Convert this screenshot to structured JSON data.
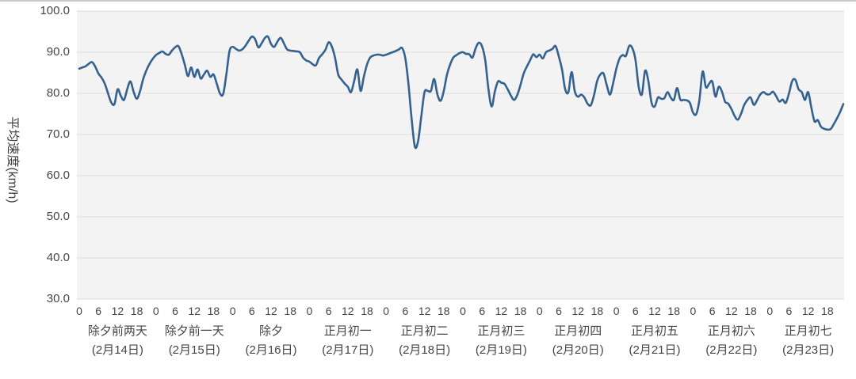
{
  "chart_data": {
    "type": "line",
    "title": "",
    "xlabel": "",
    "ylabel": "平均速度(km/h)",
    "ylim": [
      30.0,
      100.0
    ],
    "grid": "horizontal",
    "legend_position": "none",
    "line_color": "#35618f",
    "plot_background": "#f3f3f3",
    "gridline_color": "#dedede",
    "y_ticks": [
      {
        "value": 100,
        "label": "100.0"
      },
      {
        "value": 90,
        "label": "90.0"
      },
      {
        "value": 80,
        "label": "80.0"
      },
      {
        "value": 70,
        "label": "70.0"
      },
      {
        "value": 60,
        "label": "60.0"
      },
      {
        "value": 50,
        "label": "50.0"
      },
      {
        "value": 40,
        "label": "40.0"
      },
      {
        "value": 30,
        "label": "30.0"
      }
    ],
    "hour_ticks": [
      {
        "hour": 0,
        "label": "0"
      },
      {
        "hour": 6,
        "label": "6"
      },
      {
        "hour": 12,
        "label": "12"
      },
      {
        "hour": 18,
        "label": "18"
      }
    ],
    "series_name": "平均速度",
    "x_unit": "hour",
    "days": [
      {
        "name": "除夕前两天",
        "date": "(2月14日)",
        "hourly_values": [
          86.0,
          86.3,
          86.6,
          87.2,
          87.6,
          86.5,
          84.8,
          83.8,
          82.3,
          80.0,
          77.8,
          77.4,
          81.0,
          79.4,
          78.4,
          81.0,
          82.9,
          80.4,
          78.7,
          80.5,
          83.5,
          85.6,
          87.2,
          88.4
        ]
      },
      {
        "name": "除夕前一天",
        "date": "(2月15日)",
        "hourly_values": [
          89.3,
          89.8,
          90.2,
          89.6,
          89.4,
          90.4,
          91.2,
          91.5,
          89.6,
          87.0,
          84.2,
          86.3,
          84.0,
          85.8,
          83.6,
          84.6,
          85.5,
          84.0,
          84.6,
          82.4,
          80.0,
          79.8,
          84.5,
          90.3
        ]
      },
      {
        "name": "除夕",
        "date": "(2月16日)",
        "hourly_values": [
          91.3,
          90.8,
          90.4,
          90.7,
          91.6,
          92.8,
          93.8,
          93.2,
          91.2,
          92.1,
          93.4,
          93.8,
          92.0,
          91.3,
          92.6,
          93.5,
          92.2,
          90.7,
          90.4,
          90.3,
          90.2,
          90.0,
          88.7,
          88.0
        ]
      },
      {
        "name": "正月初一",
        "date": "(2月17日)",
        "hourly_values": [
          87.7,
          87.1,
          86.8,
          88.6,
          89.5,
          90.6,
          92.4,
          91.4,
          88.7,
          84.6,
          83.4,
          82.4,
          81.6,
          80.3,
          83.0,
          85.8,
          80.6,
          84.0,
          87.0,
          88.7,
          89.2,
          89.4,
          89.4,
          89.2
        ]
      },
      {
        "name": "正月初二",
        "date": "(2月18日)",
        "hourly_values": [
          89.4,
          89.7,
          90.0,
          90.3,
          90.7,
          91.0,
          88.5,
          82.0,
          73.5,
          67.0,
          68.5,
          74.5,
          80.3,
          80.6,
          80.6,
          83.5,
          79.8,
          78.2,
          80.5,
          84.5,
          87.0,
          88.7,
          89.3,
          89.8
        ]
      },
      {
        "name": "正月初三",
        "date": "(2月19日)",
        "hourly_values": [
          90.0,
          89.6,
          89.5,
          88.7,
          91.0,
          92.3,
          91.4,
          88.0,
          81.0,
          76.8,
          80.5,
          82.9,
          82.6,
          82.3,
          81.0,
          79.5,
          78.4,
          79.6,
          82.0,
          84.8,
          86.5,
          88.0,
          89.5,
          88.8
        ]
      },
      {
        "name": "正月初四",
        "date": "(2月20日)",
        "hourly_values": [
          89.4,
          88.5,
          90.0,
          90.4,
          90.8,
          91.5,
          89.0,
          85.8,
          81.0,
          80.3,
          85.2,
          80.5,
          79.2,
          79.7,
          79.0,
          77.5,
          77.1,
          79.5,
          83.0,
          84.6,
          84.8,
          82.0,
          79.7,
          82.5
        ]
      },
      {
        "name": "正月初五",
        "date": "(2月21日)",
        "hourly_values": [
          86.0,
          88.5,
          89.3,
          89.1,
          91.5,
          91.0,
          88.1,
          81.5,
          79.8,
          85.5,
          83.0,
          77.8,
          76.8,
          79.0,
          78.7,
          78.8,
          80.3,
          79.0,
          78.4,
          81.3,
          78.5,
          78.4,
          78.3,
          77.7
        ]
      },
      {
        "name": "正月初六",
        "date": "(2月22日)",
        "hourly_values": [
          75.3,
          75.0,
          78.5,
          85.3,
          81.5,
          82.3,
          82.9,
          79.2,
          81.6,
          80.5,
          78.0,
          77.5,
          76.2,
          74.5,
          73.6,
          75.0,
          77.2,
          78.4,
          79.0,
          77.2,
          78.3,
          79.7,
          80.3,
          79.8
        ]
      },
      {
        "name": "正月初七",
        "date": "(2月23日)",
        "hourly_values": [
          79.8,
          80.4,
          79.3,
          78.0,
          78.5,
          77.7,
          80.0,
          83.0,
          83.3,
          81.0,
          80.3,
          78.4,
          80.3,
          76.5,
          73.2,
          73.5,
          71.9,
          71.4,
          71.2,
          71.3,
          72.5,
          73.9,
          75.5,
          77.4
        ]
      }
    ]
  }
}
